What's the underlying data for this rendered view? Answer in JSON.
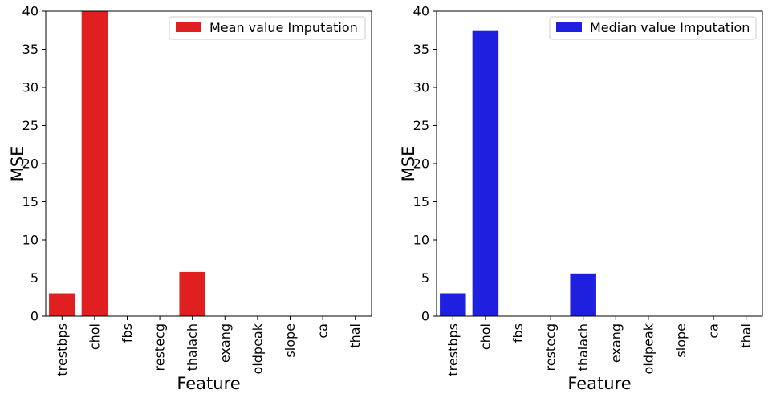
{
  "chart_data": [
    {
      "type": "bar",
      "categories": [
        "trestbps",
        "chol",
        "fbs",
        "restecg",
        "thalach",
        "exang",
        "oldpeak",
        "slope",
        "ca",
        "thal"
      ],
      "series": [
        {
          "name": "Mean value Imputation",
          "values": [
            3.0,
            40.0,
            0,
            0,
            5.8,
            0,
            0,
            0,
            0,
            0
          ]
        }
      ],
      "xlabel": "Feature",
      "ylabel": "MSE",
      "ylim": [
        0,
        40
      ],
      "yticks": [
        0,
        5,
        10,
        15,
        20,
        25,
        30,
        35,
        40
      ],
      "color": "#e02020",
      "legend": "top-right",
      "grid": false
    },
    {
      "type": "bar",
      "categories": [
        "trestbps",
        "chol",
        "fbs",
        "restecg",
        "thalach",
        "exang",
        "oldpeak",
        "slope",
        "ca",
        "thal"
      ],
      "series": [
        {
          "name": "Median value Imputation",
          "values": [
            3.0,
            37.4,
            0,
            0,
            5.6,
            0,
            0,
            0,
            0,
            0
          ]
        }
      ],
      "xlabel": "Feature",
      "ylabel": "MSE",
      "ylim": [
        0,
        40
      ],
      "yticks": [
        0,
        5,
        10,
        15,
        20,
        25,
        30,
        35,
        40
      ],
      "color": "#1f1fe0",
      "legend": "top-right",
      "grid": false
    }
  ]
}
